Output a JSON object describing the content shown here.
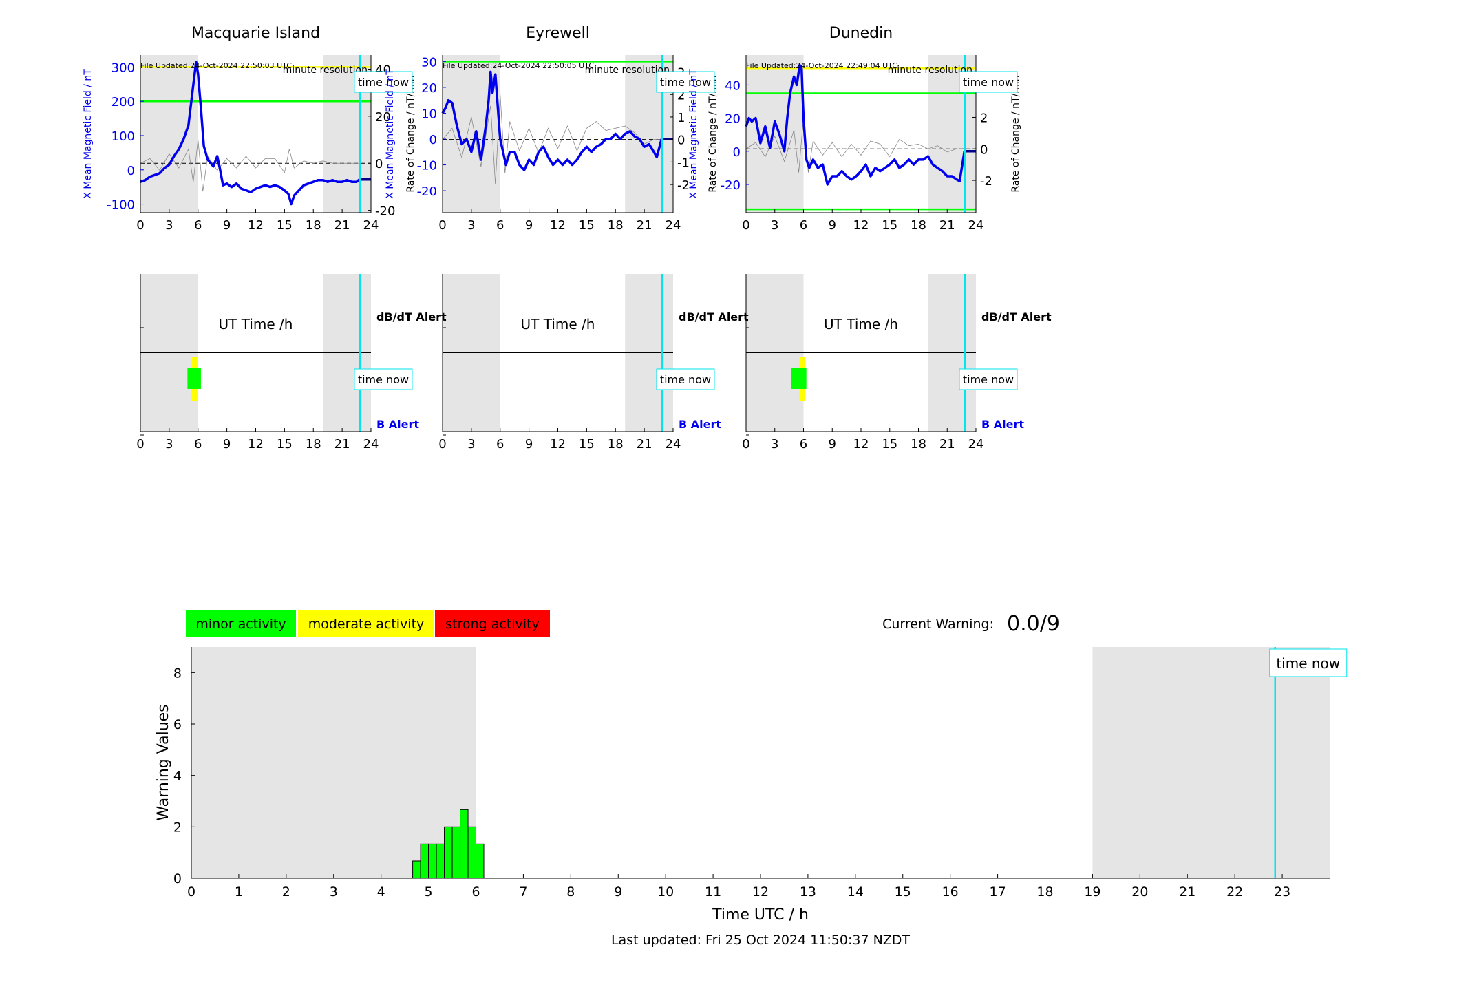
{
  "figure": {
    "last_updated": "Last updated: Fri 25 Oct 2024 11:50:37 NZDT",
    "current_warning_label": "Current Warning:",
    "current_warning_value": "0.0/9",
    "time_now_label": "time now",
    "minute_resolution_label": "minute resolution",
    "utc_xlabel": "UT Time /h",
    "db_dt_alert_label": "dB/dT Alert",
    "b_alert_label": "B Alert",
    "warning_xlabel": "Time UTC / h",
    "warning_ylabel": "Warning Values",
    "colors": {
      "mag_line": "#0000ee",
      "rate_line": "#888888",
      "yellow": "#ffff00",
      "green": "#00ff00",
      "red": "#ff0000",
      "cyan": "#00e5ee",
      "night": "#e5e5e5"
    }
  },
  "legend": [
    {
      "label": "minor activity",
      "color": "#00ff00"
    },
    {
      "label": "moderate activity",
      "color": "#ffff00"
    },
    {
      "label": "strong activity",
      "color": "#ff0000"
    }
  ],
  "chart_data": [
    {
      "type": "line",
      "title": "Macquarie Island",
      "file_updated": "File Updated:24-Oct-2024 22:50:03 UTC",
      "xlabel": "UT Time /h",
      "ylabel_left": "X Mean Magnetic Field / nT",
      "ylabel_right": "Rate of Change / nT/min",
      "xlim": [
        0,
        24
      ],
      "xticks": [
        0,
        3,
        6,
        9,
        12,
        15,
        18,
        21,
        24
      ],
      "ylim_left": [
        -125,
        335
      ],
      "yticks_left": [
        -100,
        0,
        100,
        200,
        300
      ],
      "ylim_right": [
        -21,
        46
      ],
      "yticks_right": [
        -20,
        0,
        20,
        40
      ],
      "thresholds": [
        {
          "value": 300,
          "color": "yellow"
        },
        {
          "value": 200,
          "color": "green"
        }
      ],
      "night_bands": [
        [
          0,
          6
        ],
        [
          19,
          24
        ]
      ],
      "time_now": 22.85,
      "series": [
        {
          "name": "X Mean Magnetic Field",
          "axis": "left",
          "x": [
            0,
            0.5,
            1,
            1.5,
            2,
            2.5,
            3,
            3.5,
            4,
            4.5,
            5,
            5.3,
            5.6,
            5.8,
            6.0,
            6.3,
            6.6,
            7,
            7.3,
            7.6,
            8,
            8.3,
            8.6,
            9,
            9.5,
            10,
            10.5,
            11,
            11.5,
            12,
            12.5,
            13,
            13.5,
            14,
            14.5,
            15,
            15.4,
            15.7,
            16,
            16.5,
            17,
            17.5,
            18,
            18.5,
            19,
            19.5,
            20,
            20.5,
            21,
            21.5,
            22,
            22.5,
            22.8
          ],
          "y": [
            -35,
            -30,
            -20,
            -15,
            -10,
            5,
            15,
            40,
            60,
            90,
            130,
            200,
            270,
            315,
            280,
            180,
            70,
            30,
            20,
            10,
            40,
            0,
            -45,
            -40,
            -50,
            -40,
            -55,
            -60,
            -65,
            -55,
            -50,
            -45,
            -50,
            -45,
            -50,
            -60,
            -70,
            -100,
            -75,
            -60,
            -45,
            -40,
            -35,
            -30,
            -30,
            -35,
            -30,
            -35,
            -35,
            -30,
            -35,
            -35,
            -28
          ]
        },
        {
          "name": "Rate of Change",
          "axis": "right",
          "x": [
            0,
            1,
            2,
            3,
            4,
            5,
            5.5,
            6,
            6.5,
            7,
            8,
            9,
            10,
            11,
            12,
            13,
            14,
            15,
            15.5,
            16,
            17,
            18,
            19,
            20,
            21,
            22,
            22.8
          ],
          "y": [
            0,
            2,
            -3,
            4,
            -2,
            6,
            -8,
            10,
            -12,
            3,
            -3,
            2,
            -2,
            3,
            -2,
            2,
            2,
            -4,
            6,
            -2,
            1,
            0,
            1,
            0,
            0,
            0,
            0
          ]
        }
      ]
    },
    {
      "type": "line",
      "title": "Eyrewell",
      "file_updated": "File Updated:24-Oct-2024 22:50:05 UTC",
      "xlabel": "UT Time /h",
      "ylabel_left": "X Mean Magnetic Field / nT",
      "ylabel_right": "Rate of Change / nT/min",
      "xlim": [
        0,
        24
      ],
      "xticks": [
        0,
        3,
        6,
        9,
        12,
        15,
        18,
        21,
        24
      ],
      "ylim_left": [
        -28.5,
        32.5
      ],
      "yticks_left": [
        -20,
        -10,
        0,
        10,
        20,
        30
      ],
      "ylim_right": [
        -3.25,
        3.75
      ],
      "yticks_right": [
        -2,
        -1,
        0,
        1,
        2,
        3
      ],
      "thresholds": [
        {
          "value": 30,
          "color": "green"
        }
      ],
      "night_bands": [
        [
          0,
          6
        ],
        [
          19,
          24
        ]
      ],
      "time_now": 22.85,
      "series": [
        {
          "name": "X Mean Magnetic Field",
          "axis": "left",
          "x": [
            0,
            0.3,
            0.6,
            1,
            1.5,
            2,
            2.5,
            3,
            3.5,
            4,
            4.5,
            4.8,
            5.0,
            5.2,
            5.5,
            5.8,
            6.0,
            6.3,
            6.6,
            7,
            7.5,
            8,
            8.5,
            9,
            9.5,
            10,
            10.5,
            11,
            11.5,
            12,
            12.5,
            13,
            13.5,
            14,
            14.5,
            15,
            15.5,
            16,
            16.5,
            17,
            17.5,
            18,
            18.5,
            19,
            19.5,
            20,
            20.5,
            21,
            21.5,
            22,
            22.3,
            22.8
          ],
          "y": [
            10,
            12,
            15,
            14,
            5,
            -2,
            0,
            -5,
            3,
            -8,
            5,
            15,
            26,
            18,
            25,
            10,
            0,
            -5,
            -10,
            -5,
            -5,
            -10,
            -12,
            -8,
            -10,
            -5,
            -3,
            -7,
            -10,
            -8,
            -10,
            -8,
            -10,
            -8,
            -5,
            -3,
            -5,
            -3,
            -2,
            0,
            0,
            2,
            0,
            2,
            3,
            1,
            0,
            -3,
            -2,
            -5,
            -7,
            0
          ]
        },
        {
          "name": "Rate of Change",
          "axis": "right",
          "x": [
            0,
            1,
            2,
            3,
            4,
            5,
            5.5,
            6,
            6.5,
            7,
            8,
            9,
            10,
            11,
            12,
            13,
            14,
            15,
            16,
            17,
            18,
            19,
            20,
            21,
            22,
            22.8
          ],
          "y": [
            0,
            0.5,
            -0.8,
            1,
            -1.2,
            1.5,
            -2,
            2,
            -1.5,
            0.8,
            -0.5,
            0.5,
            -0.6,
            0.5,
            -0.4,
            0.6,
            -0.5,
            0.5,
            0.8,
            0.4,
            0.5,
            0.6,
            0.3,
            -0.2,
            0,
            0
          ]
        }
      ]
    },
    {
      "type": "line",
      "title": "Dunedin",
      "file_updated": "File Updated:24-Oct-2024 22:49:04 UTC",
      "xlabel": "UT Time /h",
      "ylabel_left": "X Mean Magnetic Field / nT",
      "ylabel_right": "Rate of Change / nT/min",
      "xlim": [
        0,
        24
      ],
      "xticks": [
        0,
        3,
        6,
        9,
        12,
        15,
        18,
        21,
        24
      ],
      "ylim_left": [
        -37,
        58
      ],
      "yticks_left": [
        -20,
        0,
        20,
        40
      ],
      "ylim_right": [
        -4.05,
        5.95
      ],
      "yticks_right": [
        -2,
        0,
        2,
        4
      ],
      "thresholds": [
        {
          "value": 50,
          "color": "yellow"
        },
        {
          "value": 35,
          "color": "green"
        },
        {
          "value": -35,
          "color": "green"
        }
      ],
      "night_bands": [
        [
          0,
          6
        ],
        [
          19,
          24
        ]
      ],
      "time_now": 22.85,
      "series": [
        {
          "name": "X Mean Magnetic Field",
          "axis": "left",
          "x": [
            0,
            0.3,
            0.6,
            1,
            1.5,
            2,
            2.5,
            3,
            3.5,
            4,
            4.3,
            4.6,
            5.0,
            5.3,
            5.6,
            5.8,
            6.0,
            6.3,
            6.6,
            7,
            7.5,
            8,
            8.5,
            9,
            9.5,
            10,
            10.5,
            11,
            11.5,
            12,
            12.5,
            13,
            13.5,
            14,
            14.5,
            15,
            15.5,
            16,
            16.5,
            17,
            17.5,
            18,
            18.5,
            19,
            19.5,
            20,
            20.5,
            21,
            21.5,
            22,
            22.3,
            22.8
          ],
          "y": [
            15,
            20,
            18,
            20,
            5,
            15,
            2,
            18,
            10,
            0,
            20,
            35,
            45,
            40,
            52,
            50,
            20,
            -5,
            -10,
            -5,
            -10,
            -8,
            -20,
            -15,
            -15,
            -12,
            -15,
            -17,
            -15,
            -12,
            -8,
            -15,
            -10,
            -12,
            -10,
            -8,
            -5,
            -10,
            -8,
            -5,
            -8,
            -5,
            -5,
            -3,
            -8,
            -10,
            -12,
            -15,
            -15,
            -17,
            -18,
            0
          ]
        },
        {
          "name": "Rate of Change",
          "axis": "right",
          "x": [
            0,
            1,
            2,
            3,
            4,
            5,
            5.5,
            6,
            6.5,
            7,
            8,
            9,
            10,
            11,
            12,
            13,
            14,
            15,
            16,
            17,
            18,
            19,
            20,
            21,
            22,
            22.8
          ],
          "y": [
            0,
            0.4,
            -0.5,
            0.8,
            -0.8,
            1.2,
            -1.5,
            2,
            -1.5,
            0.5,
            -0.4,
            0.4,
            -0.5,
            0.3,
            -0.4,
            0.5,
            0.3,
            -0.5,
            0.6,
            0.2,
            0.3,
            0,
            0.2,
            -0.2,
            0,
            0
          ]
        }
      ]
    },
    {
      "type": "heatmap",
      "title": "",
      "xlim": [
        0,
        24
      ],
      "xticks": [
        0,
        3,
        6,
        9,
        12,
        15,
        18,
        21,
        24
      ],
      "rows": [
        "dB/dT Alert",
        "B Alert"
      ],
      "night_bands": [
        [
          0,
          6
        ],
        [
          19,
          24
        ]
      ],
      "time_now": 22.85,
      "b_alert_blocks": [
        {
          "x0": 5.3,
          "x1": 5.9,
          "level": "moderate"
        },
        {
          "x0": 4.9,
          "x1": 6.3,
          "level": "minor"
        }
      ]
    },
    {
      "type": "heatmap",
      "title": "",
      "xlim": [
        0,
        24
      ],
      "xticks": [
        0,
        3,
        6,
        9,
        12,
        15,
        18,
        21,
        24
      ],
      "rows": [
        "dB/dT Alert",
        "B Alert"
      ],
      "night_bands": [
        [
          0,
          6
        ],
        [
          19,
          24
        ]
      ],
      "time_now": 22.85,
      "b_alert_blocks": []
    },
    {
      "type": "heatmap",
      "title": "",
      "xlim": [
        0,
        24
      ],
      "xticks": [
        0,
        3,
        6,
        9,
        12,
        15,
        18,
        21,
        24
      ],
      "rows": [
        "dB/dT Alert",
        "B Alert"
      ],
      "night_bands": [
        [
          0,
          6
        ],
        [
          19,
          24
        ]
      ],
      "time_now": 22.85,
      "b_alert_blocks": [
        {
          "x0": 5.6,
          "x1": 6.2,
          "level": "moderate"
        },
        {
          "x0": 4.7,
          "x1": 6.3,
          "level": "minor"
        }
      ]
    },
    {
      "type": "bar",
      "title": "",
      "xlabel": "Time UTC / h",
      "ylabel": "Warning Values",
      "xlim": [
        0,
        24
      ],
      "xticks": [
        0,
        1,
        2,
        3,
        4,
        5,
        6,
        7,
        8,
        9,
        10,
        11,
        12,
        13,
        14,
        15,
        16,
        17,
        18,
        19,
        20,
        21,
        22,
        23
      ],
      "ylim": [
        0,
        9
      ],
      "yticks": [
        0,
        2,
        4,
        6,
        8
      ],
      "night_bands": [
        [
          0,
          6
        ],
        [
          19,
          24
        ]
      ],
      "time_now": 22.85,
      "bar_width": 0.1667,
      "x": [
        4.75,
        4.9167,
        5.0833,
        5.25,
        5.4167,
        5.5833,
        5.75,
        5.9167,
        6.0833
      ],
      "values": [
        0.67,
        1.33,
        1.33,
        1.33,
        2.0,
        2.0,
        2.67,
        2.0,
        1.33
      ]
    }
  ]
}
